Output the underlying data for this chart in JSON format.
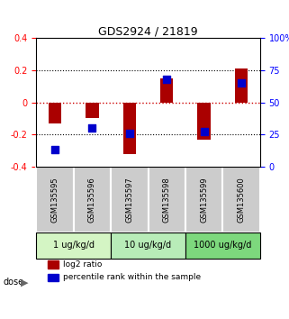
{
  "title": "GDS2924 / 21819",
  "samples": [
    "GSM135595",
    "GSM135596",
    "GSM135597",
    "GSM135598",
    "GSM135599",
    "GSM135600"
  ],
  "log2_ratios": [
    -0.13,
    -0.1,
    -0.32,
    0.15,
    -0.23,
    0.21
  ],
  "percentile_ranks": [
    13,
    30,
    26,
    68,
    27,
    65
  ],
  "dose_groups": [
    {
      "label": "1 ug/kg/d",
      "samples": [
        0,
        1
      ],
      "color": "#d4f5c4"
    },
    {
      "label": "10 ug/kg/d",
      "samples": [
        2,
        3
      ],
      "color": "#b8ecb8"
    },
    {
      "label": "1000 ug/kg/d",
      "samples": [
        4,
        5
      ],
      "color": "#7dd87d"
    }
  ],
  "ylim": [
    -0.4,
    0.4
  ],
  "y_ticks_left": [
    -0.4,
    -0.2,
    0.0,
    0.2,
    0.4
  ],
  "y_ticks_right": [
    0,
    25,
    50,
    75,
    100
  ],
  "bar_color": "#aa0000",
  "dot_color": "#0000cc",
  "hline_color": "#cc0000",
  "dotted_color": "#000000",
  "bar_width": 0.35,
  "dot_size": 40,
  "legend_red_label": "log2 ratio",
  "legend_blue_label": "percentile rank within the sample",
  "xlabel_dose": "dose",
  "sample_bg_color": "#cccccc"
}
